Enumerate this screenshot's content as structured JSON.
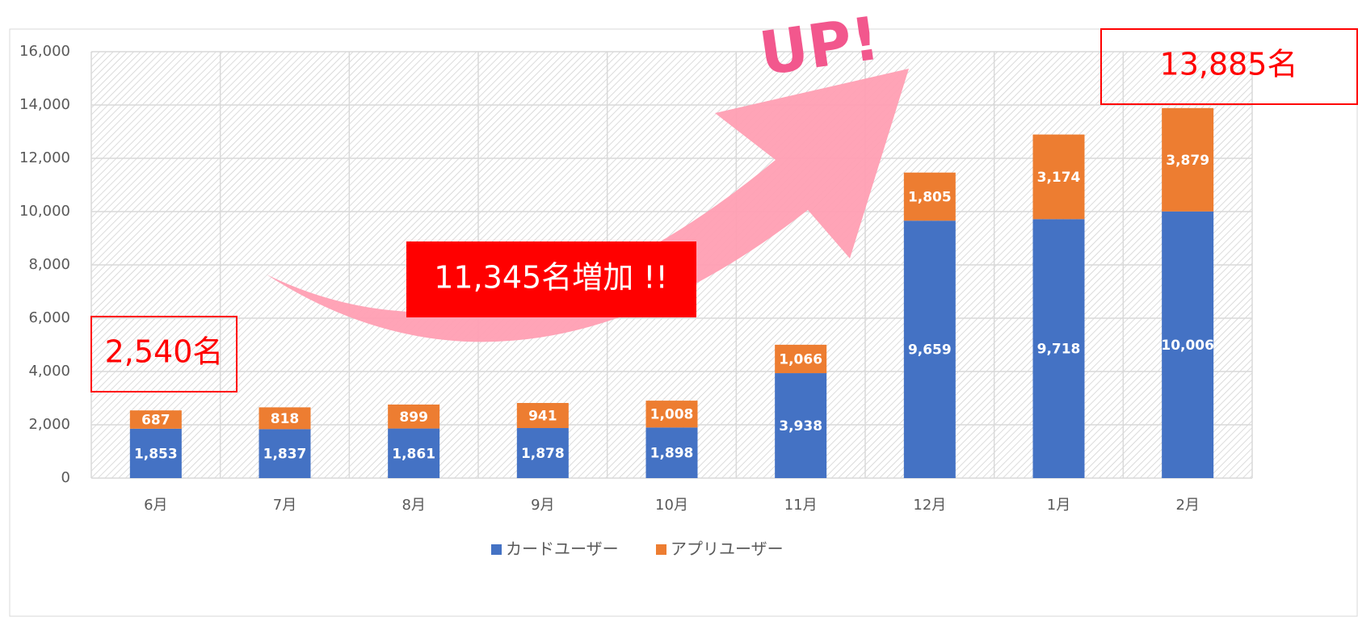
{
  "chart_data": {
    "type": "bar",
    "stacked": true,
    "categories": [
      "6月",
      "7月",
      "8月",
      "9月",
      "10月",
      "11月",
      "12月",
      "1月",
      "2月"
    ],
    "series": [
      {
        "name": "カードユーザー",
        "color": "#4472c4",
        "values": [
          1853,
          1837,
          1861,
          1878,
          1898,
          3938,
          9659,
          9718,
          10006
        ],
        "value_labels": [
          "1,853",
          "1,837",
          "1,861",
          "1,878",
          "1,898",
          "3,938",
          "9,659",
          "9,718",
          "10,006"
        ]
      },
      {
        "name": "アプリユーザー",
        "color": "#ed7d31",
        "values": [
          687,
          818,
          899,
          941,
          1008,
          1066,
          1805,
          3174,
          3879
        ],
        "value_labels": [
          "687",
          "818",
          "899",
          "941",
          "1,008",
          "1,066",
          "1,805",
          "3,174",
          "3,879"
        ]
      }
    ],
    "ylim": [
      0,
      16000
    ],
    "yticks": [
      0,
      {
        "value": 2000,
        "label": "2,000"
      },
      {
        "value": 4000,
        "label": "4,000"
      },
      {
        "value": 6000,
        "label": "6,000"
      },
      {
        "value": 8000,
        "label": "8,000"
      },
      {
        "value": 10000,
        "label": "10,000"
      },
      {
        "value": 12000,
        "label": "12,000"
      },
      {
        "value": 14000,
        "label": "14,000"
      },
      {
        "value": 16000,
        "label": "16,000"
      }
    ],
    "grid": true,
    "legend": "bottom",
    "annotations": [
      "2,540名",
      "13,885名",
      "11,345名増加 !!",
      "UP!"
    ]
  }
}
